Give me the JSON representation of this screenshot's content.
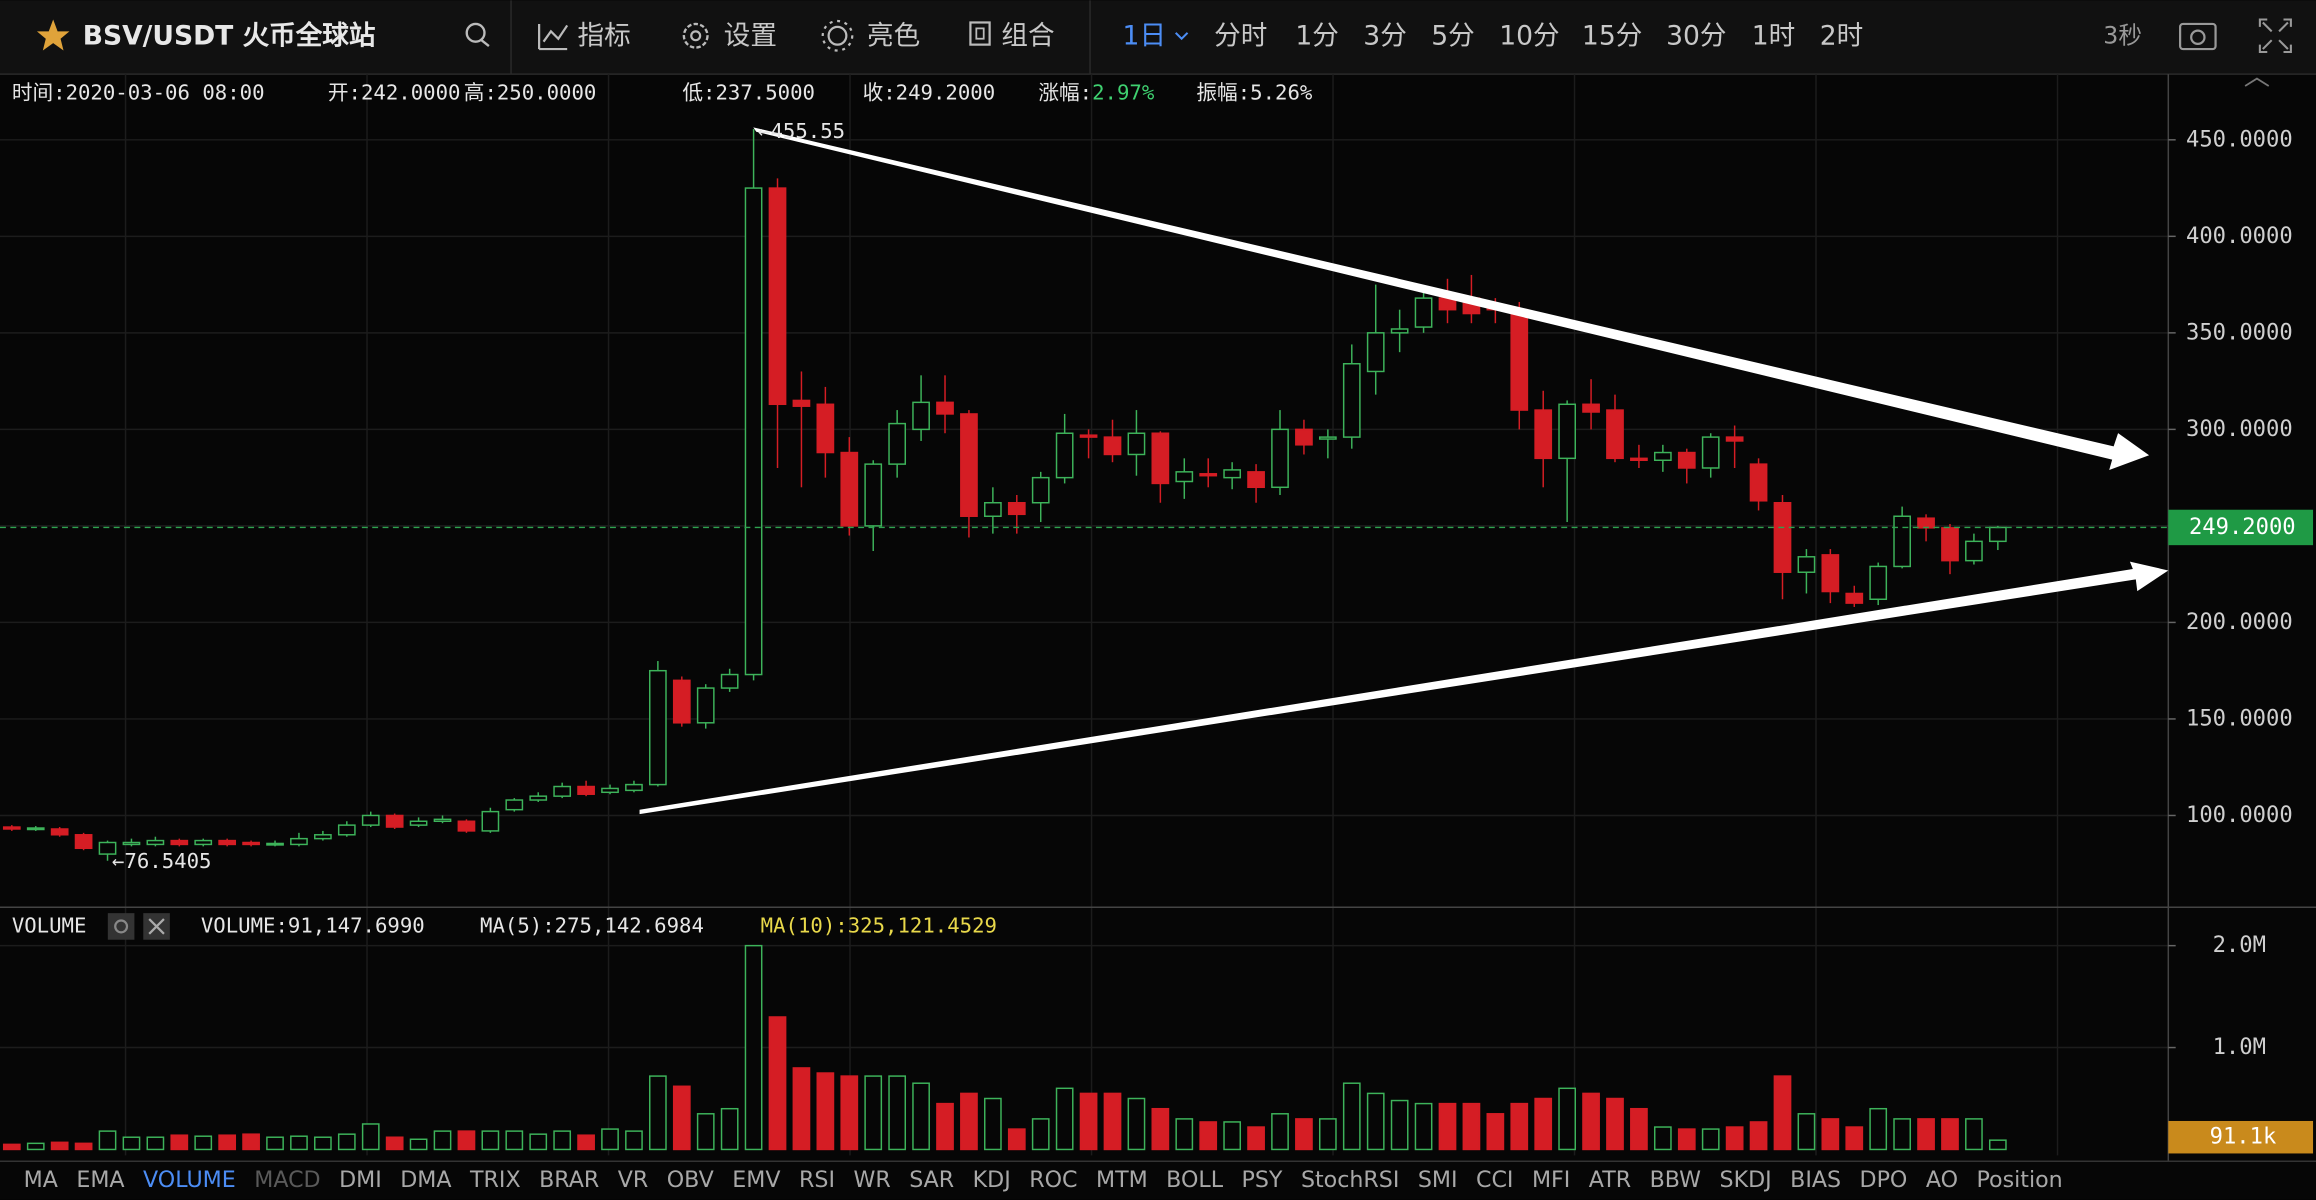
{
  "toolbar": {
    "symbol": "BSV/USDT 火币全球站",
    "menus": [
      "指标",
      "设置",
      "亮色",
      "组合"
    ],
    "intervals": [
      "1日",
      "分时",
      "1分",
      "3分",
      "5分",
      "10分",
      "15分",
      "30分",
      "1时",
      "2时"
    ],
    "refresh": "3秒"
  },
  "info": [
    {
      "label": "时间:",
      "value": "2020-03-06 08:00"
    },
    {
      "label": "开:",
      "value": "242.0000"
    },
    {
      "label": "高:",
      "value": "250.0000"
    },
    {
      "label": "低:",
      "value": "237.5000"
    },
    {
      "label": "收:",
      "value": "249.2000"
    },
    {
      "label": "涨幅:",
      "value": "2.97%",
      "color": "#3fd170"
    },
    {
      "label": "振幅:",
      "value": "5.26%"
    }
  ],
  "chart_data": {
    "type": "candlestick",
    "color_up": "#3db35a",
    "color_down": "#d51d24",
    "grid": true,
    "open": [
      94,
      93,
      93,
      90,
      80,
      85,
      85,
      87,
      85,
      87,
      86,
      85,
      85,
      88,
      90,
      95,
      100,
      95,
      97,
      97,
      92,
      103,
      108,
      110,
      115,
      112,
      113,
      116,
      170,
      148,
      166,
      173,
      425,
      315,
      313,
      288,
      250,
      282,
      300,
      314,
      308,
      255,
      262,
      262,
      275,
      297,
      296,
      287,
      298,
      273,
      277,
      275,
      278,
      270,
      300,
      295,
      296,
      330,
      350,
      353,
      368,
      368,
      364,
      362,
      310,
      285,
      313,
      310,
      285,
      284,
      288,
      280,
      296,
      282,
      262,
      226,
      235,
      215,
      212,
      229,
      254,
      249,
      232,
      242
    ],
    "high": [
      95,
      94.5,
      94,
      91,
      87,
      88,
      89,
      88,
      88,
      88,
      87,
      87,
      91,
      92,
      97,
      102,
      101,
      99,
      100,
      98,
      104,
      109,
      112,
      117,
      118,
      116,
      118,
      180,
      172,
      168,
      176,
      455.55,
      430,
      330,
      322,
      296,
      284,
      310,
      328,
      328,
      310,
      270,
      266,
      278,
      308,
      300,
      305,
      310,
      299,
      285,
      285,
      283,
      282,
      310,
      305,
      300,
      344,
      375,
      362,
      372,
      378,
      380,
      368,
      366,
      320,
      315,
      326,
      318,
      292,
      292,
      290,
      298,
      302,
      285,
      266,
      238,
      238,
      219,
      231,
      260,
      256,
      251,
      246,
      250
    ],
    "low": [
      92,
      92,
      89,
      82,
      76.5405,
      84,
      84,
      84,
      84,
      84,
      84,
      84,
      84,
      87,
      89,
      94,
      93,
      94,
      96,
      91,
      91,
      102,
      107,
      109,
      110,
      111,
      112,
      115,
      146,
      145,
      164,
      170,
      280,
      270,
      275,
      245,
      237,
      275,
      294,
      298,
      244,
      246,
      246,
      252,
      272,
      285,
      283,
      276,
      262,
      264,
      270,
      269,
      262,
      266,
      287,
      285,
      290,
      318,
      340,
      350,
      355,
      355,
      355,
      300,
      270,
      252,
      300,
      283,
      280,
      278,
      272,
      275,
      280,
      258,
      212,
      215,
      210,
      208,
      209,
      228,
      242,
      225,
      230,
      237.5
    ],
    "close": [
      93,
      93.5,
      90,
      83,
      86,
      86,
      87,
      85,
      87,
      85,
      85,
      85.5,
      88,
      90,
      95,
      100,
      94,
      97,
      98,
      92,
      102,
      108,
      110,
      115,
      111,
      114,
      116,
      175,
      148,
      166,
      173,
      425,
      313,
      312,
      288,
      250,
      282,
      303,
      314,
      308,
      255,
      262,
      256,
      275,
      298,
      296,
      287,
      298,
      272,
      278,
      276,
      279,
      270,
      300,
      292,
      296,
      334,
      350,
      352,
      368,
      362,
      360,
      362,
      310,
      285,
      313,
      309,
      285,
      284,
      288,
      280,
      296,
      294,
      263,
      226,
      234,
      216,
      210,
      229,
      255,
      249,
      232,
      242,
      249.2
    ],
    "ylim": [
      54,
      484
    ],
    "yticks": [
      {
        "value": 100,
        "label": "100.0000"
      },
      {
        "value": 150,
        "label": "150.0000"
      },
      {
        "value": 200,
        "label": "200.0000"
      },
      {
        "value": 250,
        "label": "250.0000"
      },
      {
        "value": 300,
        "label": "300.0000"
      },
      {
        "value": 350,
        "label": "350.0000"
      },
      {
        "value": 400,
        "label": "400.0000"
      },
      {
        "value": 450,
        "label": "450.0000"
      }
    ],
    "last_price": {
      "value": 249.2,
      "label": "249.2000"
    },
    "high_label": "←455.55",
    "low_label": "←76.5405",
    "volume": {
      "title": "VOLUME",
      "readings": [
        {
          "text": "VOLUME:91,147.6990",
          "color": "#e6e6e6"
        },
        {
          "text": "MA(5):275,142.6984",
          "color": "#e6e6e6"
        },
        {
          "text": "MA(10):325,121.4529",
          "color": "#e8d84a"
        }
      ],
      "values": [
        50000,
        60000,
        70000,
        60000,
        180000,
        120000,
        120000,
        140000,
        130000,
        140000,
        150000,
        120000,
        130000,
        120000,
        150000,
        250000,
        120000,
        100000,
        180000,
        180000,
        180000,
        180000,
        150000,
        180000,
        140000,
        200000,
        180000,
        720000,
        620000,
        350000,
        400000,
        2000000,
        1300000,
        800000,
        750000,
        720000,
        720000,
        720000,
        650000,
        450000,
        550000,
        500000,
        200000,
        300000,
        600000,
        550000,
        550000,
        500000,
        400000,
        300000,
        270000,
        270000,
        220000,
        350000,
        300000,
        300000,
        650000,
        550000,
        480000,
        450000,
        450000,
        450000,
        350000,
        450000,
        500000,
        600000,
        550000,
        500000,
        400000,
        220000,
        200000,
        200000,
        220000,
        270000,
        720000,
        350000,
        300000,
        220000,
        400000,
        300000,
        300000,
        300000,
        300000,
        91147.699
      ],
      "last_label": "91.1k",
      "ylim": [
        -58000,
        2319000
      ],
      "yticks": [
        {
          "value": 1000000,
          "label": "1.0M"
        },
        {
          "value": 2000000,
          "label": "2.0M"
        }
      ]
    }
  },
  "indicators": [
    "MA",
    "EMA",
    "VOLUME",
    "MACD",
    "DMI",
    "DMA",
    "TRIX",
    "BRAR",
    "VR",
    "OBV",
    "EMV",
    "RSI",
    "WR",
    "SAR",
    "KDJ",
    "ROC",
    "MTM",
    "BOLL",
    "PSY",
    "StochRSI",
    "SMI",
    "CCI",
    "MFI",
    "ATR",
    "BBW",
    "SKDJ",
    "BIAS",
    "DPO",
    "AO",
    "Position"
  ],
  "active_indicator": "VOLUME",
  "disabled_indicator": "MACD"
}
